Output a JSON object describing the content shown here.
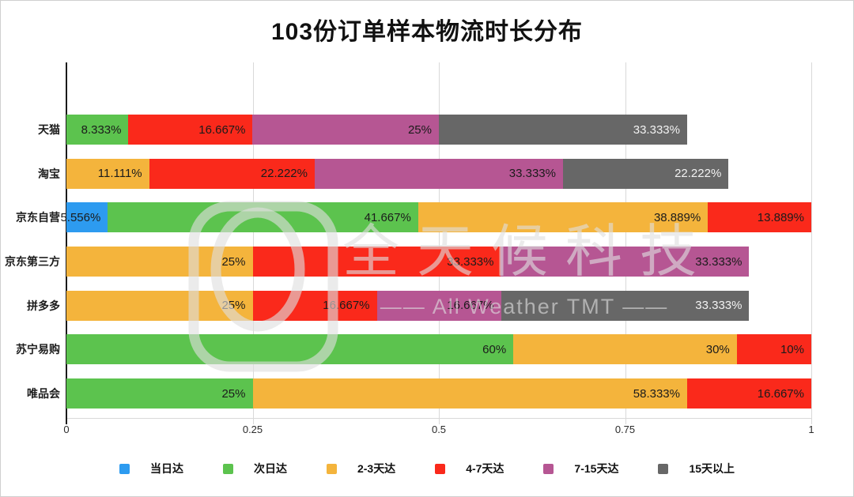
{
  "title": "103份订单样本物流时长分布",
  "watermark": {
    "brand": "全天候科技",
    "tagline": "All Weather TMT",
    "tagline_display": "—— All Weather TMT ——"
  },
  "x_axis": {
    "ticks": [
      {
        "label": "0",
        "value": 0
      },
      {
        "label": "0.25",
        "value": 0.25
      },
      {
        "label": "0.5",
        "value": 0.5
      },
      {
        "label": "0.75",
        "value": 0.75
      },
      {
        "label": "1",
        "value": 1
      }
    ]
  },
  "legend": [
    {
      "label": "当日达",
      "color": "#2D9BF0"
    },
    {
      "label": "次日达",
      "color": "#5CC34E"
    },
    {
      "label": "2-3天达",
      "color": "#F4B43C"
    },
    {
      "label": "4-7天达",
      "color": "#FA291B"
    },
    {
      "label": "7-15天达",
      "color": "#B65693"
    },
    {
      "label": "15天以上",
      "color": "#676767"
    }
  ],
  "chart_data": {
    "type": "bar",
    "orientation": "horizontal",
    "stacked": true,
    "title": "103份订单样本物流时长分布",
    "xlim": [
      0,
      1
    ],
    "x_ticks": [
      "0",
      "0.25",
      "0.5",
      "0.75",
      "1"
    ],
    "grid": true,
    "legend_position": "bottom",
    "value_unit": "%",
    "categories": [
      "天猫",
      "淘宝",
      "京东自营",
      "京东第三方",
      "拼多多",
      "苏宁易购",
      "唯品会"
    ],
    "series": [
      {
        "name": "当日达",
        "color": "#2D9BF0",
        "values": [
          0,
          0,
          5.556,
          0,
          0,
          0,
          0
        ]
      },
      {
        "name": "次日达",
        "color": "#5CC34E",
        "values": [
          8.333,
          0,
          41.667,
          0,
          0,
          60,
          25
        ]
      },
      {
        "name": "2-3天达",
        "color": "#F4B43C",
        "values": [
          0,
          11.111,
          38.889,
          25,
          25,
          30,
          58.333
        ]
      },
      {
        "name": "4-7天达",
        "color": "#FA291B",
        "values": [
          16.667,
          22.222,
          13.889,
          33.333,
          16.667,
          10,
          16.667
        ]
      },
      {
        "name": "7-15天达",
        "color": "#B65693",
        "values": [
          25,
          33.333,
          0,
          33.333,
          16.667,
          0,
          0
        ]
      },
      {
        "name": "15天以上",
        "color": "#676767",
        "values": [
          33.333,
          22.222,
          0,
          0,
          33.333,
          0,
          0
        ]
      }
    ],
    "rows": [
      {
        "category": "天猫",
        "segments": [
          {
            "series": "次日达",
            "value": 8.333,
            "label": "8.333%"
          },
          {
            "series": "4-7天达",
            "value": 16.667,
            "label": "16.667%"
          },
          {
            "series": "7-15天达",
            "value": 25,
            "label": "25%"
          },
          {
            "series": "15天以上",
            "value": 33.333,
            "label": "33.333%"
          }
        ]
      },
      {
        "category": "淘宝",
        "segments": [
          {
            "series": "2-3天达",
            "value": 11.111,
            "label": "11.111%"
          },
          {
            "series": "4-7天达",
            "value": 22.222,
            "label": "22.222%"
          },
          {
            "series": "7-15天达",
            "value": 33.333,
            "label": "33.333%"
          },
          {
            "series": "15天以上",
            "value": 22.222,
            "label": "22.222%"
          }
        ]
      },
      {
        "category": "京东自营",
        "segments": [
          {
            "series": "当日达",
            "value": 5.556,
            "label": "5.556%"
          },
          {
            "series": "次日达",
            "value": 41.667,
            "label": "41.667%"
          },
          {
            "series": "2-3天达",
            "value": 38.889,
            "label": "38.889%"
          },
          {
            "series": "4-7天达",
            "value": 13.889,
            "label": "13.889%"
          }
        ]
      },
      {
        "category": "京东第三方",
        "segments": [
          {
            "series": "2-3天达",
            "value": 25,
            "label": "25%"
          },
          {
            "series": "4-7天达",
            "value": 33.333,
            "label": "33.333%"
          },
          {
            "series": "7-15天达",
            "value": 33.333,
            "label": "33.333%"
          }
        ]
      },
      {
        "category": "拼多多",
        "segments": [
          {
            "series": "2-3天达",
            "value": 25,
            "label": "25%"
          },
          {
            "series": "4-7天达",
            "value": 16.667,
            "label": "16.667%"
          },
          {
            "series": "7-15天达",
            "value": 16.667,
            "label": "16.667%"
          },
          {
            "series": "15天以上",
            "value": 33.333,
            "label": "33.333%"
          }
        ]
      },
      {
        "category": "苏宁易购",
        "segments": [
          {
            "series": "次日达",
            "value": 60,
            "label": "60%"
          },
          {
            "series": "2-3天达",
            "value": 30,
            "label": "30%"
          },
          {
            "series": "4-7天达",
            "value": 10,
            "label": "10%"
          }
        ]
      },
      {
        "category": "唯品会",
        "segments": [
          {
            "series": "次日达",
            "value": 25,
            "label": "25%"
          },
          {
            "series": "2-3天达",
            "value": 58.333,
            "label": "58.333%"
          },
          {
            "series": "4-7天达",
            "value": 16.667,
            "label": "16.667%"
          }
        ]
      }
    ]
  }
}
